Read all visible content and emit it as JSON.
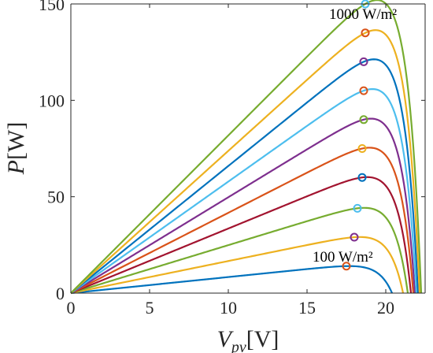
{
  "chart_data": {
    "type": "line",
    "title": "",
    "xlabel": {
      "main": "V",
      "sub": "pv",
      "unit": "[V]"
    },
    "ylabel": {
      "main": "P",
      "unit": "[W]"
    },
    "xlim": [
      0,
      22.5
    ],
    "ylim": [
      0,
      150
    ],
    "xticks": [
      "0",
      "5",
      "10",
      "15",
      "20"
    ],
    "yticks": [
      "0",
      "50",
      "100",
      "150"
    ],
    "grid": false,
    "legend": "none",
    "annotations": [
      {
        "text": "1000 W/m²",
        "x": 18.8,
        "y": 150
      },
      {
        "text": "100 W/m²",
        "x": 17.6,
        "y": 14
      }
    ],
    "series": [
      {
        "color": "#0072BD",
        "mpp": [
          17.5,
          14.0
        ],
        "voc": 20.4
      },
      {
        "color": "#EDB120",
        "mpp": [
          18.0,
          29.0
        ],
        "voc": 21.1
      },
      {
        "color": "#77AC30",
        "mpp": [
          18.2,
          44.0
        ],
        "voc": 21.4
      },
      {
        "color": "#A2142F",
        "mpp": [
          18.5,
          60.0
        ],
        "voc": 21.6
      },
      {
        "color": "#D95319",
        "mpp": [
          18.5,
          75.0
        ],
        "voc": 21.75
      },
      {
        "color": "#7E2F8E",
        "mpp": [
          18.6,
          90.0
        ],
        "voc": 21.85
      },
      {
        "color": "#4DBEEE",
        "mpp": [
          18.6,
          105.0
        ],
        "voc": 21.95
      },
      {
        "color": "#0072BD",
        "mpp": [
          18.6,
          120.0
        ],
        "voc": 22.05
      },
      {
        "color": "#EDB120",
        "mpp": [
          18.7,
          135.0
        ],
        "voc": 22.15
      },
      {
        "color": "#77AC30",
        "mpp": [
          18.7,
          150.0
        ],
        "voc": 22.25
      }
    ],
    "mpp_marker_colors": [
      "#D95319",
      "#7E2F8E",
      "#4DBEEE",
      "#0072BD",
      "#EDB120",
      "#77AC30",
      "#D95319",
      "#7E2F8E",
      "#D95319",
      "#4DBEEE"
    ]
  }
}
